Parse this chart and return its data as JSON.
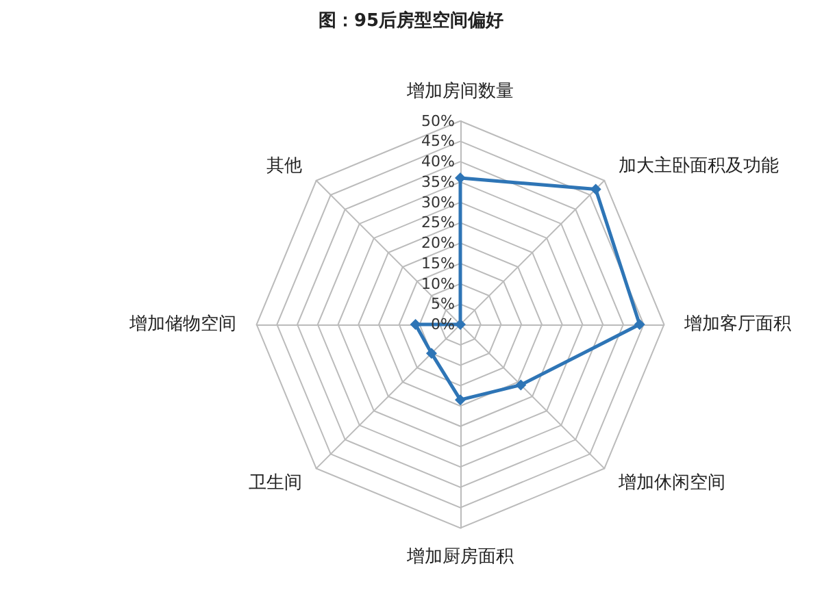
{
  "chart_data": {
    "type": "radar",
    "title": "图：95后房型空间偏好",
    "categories": [
      "增加房间数量",
      "加大主卧面积及功能",
      "增加客厅面积",
      "增加休闲空间",
      "增加厨房面积",
      "卫生间",
      "增加储物空间",
      "其他"
    ],
    "series": [
      {
        "color": "#2e75b6",
        "values": [
          36,
          47,
          44,
          21,
          18.5,
          10,
          11,
          0
        ]
      }
    ],
    "ylim": [
      0,
      50
    ],
    "yticks": [
      {
        "value": 0,
        "label": "0%"
      },
      {
        "value": 5,
        "label": "5%"
      },
      {
        "value": 10,
        "label": "10%"
      },
      {
        "value": 15,
        "label": "15%"
      },
      {
        "value": 20,
        "label": "20%"
      },
      {
        "value": 25,
        "label": "25%"
      },
      {
        "value": 30,
        "label": "30%"
      },
      {
        "value": 35,
        "label": "35%"
      },
      {
        "value": 40,
        "label": "40%"
      },
      {
        "value": 45,
        "label": "45%"
      },
      {
        "value": 50,
        "label": "50%"
      }
    ],
    "grid": true,
    "marker": "diamond",
    "line_style": "solid"
  }
}
